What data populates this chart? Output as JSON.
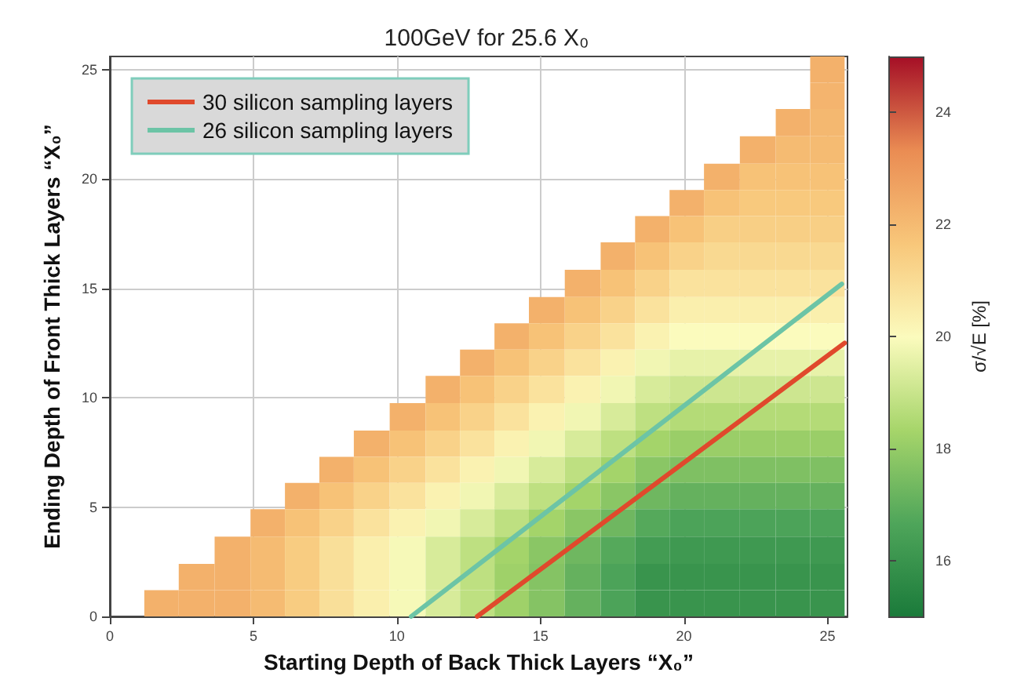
{
  "chart_data": {
    "type": "heatmap",
    "title": "100GeV for 25.6 X₀",
    "xlabel": "Starting Depth of Back Thick Layers “X₀”",
    "ylabel": "Ending Depth of Front Thick Layers “X₀”",
    "clabel": "σ/√E [%]",
    "x": [
      0.6,
      1.8,
      3.0,
      4.3,
      5.5,
      6.7,
      7.9,
      9.1,
      10.4,
      11.6,
      12.8,
      14.0,
      15.2,
      16.5,
      17.7,
      18.9,
      20.1,
      21.3,
      22.6,
      23.8,
      25.0
    ],
    "cells": [
      [
        null,
        null,
        null,
        null,
        null,
        null,
        null,
        null,
        null,
        null,
        null,
        null,
        null,
        null,
        null,
        null,
        null,
        null,
        null,
        null,
        22.3
      ],
      [
        null,
        null,
        null,
        null,
        null,
        null,
        null,
        null,
        null,
        null,
        null,
        null,
        null,
        null,
        null,
        null,
        null,
        null,
        null,
        null,
        22.2
      ],
      [
        null,
        null,
        null,
        null,
        null,
        null,
        null,
        null,
        null,
        null,
        null,
        null,
        null,
        null,
        null,
        null,
        null,
        null,
        null,
        22.3,
        22.1
      ],
      [
        null,
        null,
        null,
        null,
        null,
        null,
        null,
        null,
        null,
        null,
        null,
        null,
        null,
        null,
        null,
        null,
        null,
        null,
        22.3,
        22.0,
        22.0
      ],
      [
        null,
        null,
        null,
        null,
        null,
        null,
        null,
        null,
        null,
        null,
        null,
        null,
        null,
        null,
        null,
        null,
        null,
        22.3,
        21.8,
        21.8,
        21.8
      ],
      [
        null,
        null,
        null,
        null,
        null,
        null,
        null,
        null,
        null,
        null,
        null,
        null,
        null,
        null,
        null,
        null,
        22.3,
        21.8,
        21.6,
        21.6,
        21.6
      ],
      [
        null,
        null,
        null,
        null,
        null,
        null,
        null,
        null,
        null,
        null,
        null,
        null,
        null,
        null,
        null,
        22.3,
        21.8,
        21.4,
        21.4,
        21.4,
        21.4
      ],
      [
        null,
        null,
        null,
        null,
        null,
        null,
        null,
        null,
        null,
        null,
        null,
        null,
        null,
        null,
        22.3,
        21.8,
        21.3,
        21.1,
        21.1,
        21.1,
        21.1
      ],
      [
        null,
        null,
        null,
        null,
        null,
        null,
        null,
        null,
        null,
        null,
        null,
        null,
        null,
        22.3,
        21.8,
        21.3,
        20.8,
        20.8,
        20.8,
        20.8,
        20.8
      ],
      [
        null,
        null,
        null,
        null,
        null,
        null,
        null,
        null,
        null,
        null,
        null,
        null,
        22.3,
        21.8,
        21.3,
        20.8,
        20.4,
        20.4,
        20.4,
        20.4,
        20.4
      ],
      [
        null,
        null,
        null,
        null,
        null,
        null,
        null,
        null,
        null,
        null,
        null,
        22.3,
        21.8,
        21.3,
        20.8,
        20.3,
        20.0,
        20.0,
        20.0,
        20.0,
        20.0
      ],
      [
        null,
        null,
        null,
        null,
        null,
        null,
        null,
        null,
        null,
        null,
        22.3,
        21.8,
        21.3,
        20.8,
        20.3,
        19.8,
        19.6,
        19.6,
        19.6,
        19.6,
        19.6
      ],
      [
        null,
        null,
        null,
        null,
        null,
        null,
        null,
        null,
        null,
        22.3,
        21.8,
        21.3,
        20.8,
        20.3,
        19.8,
        19.3,
        19.1,
        19.1,
        19.1,
        19.1,
        19.1
      ],
      [
        null,
        null,
        null,
        null,
        null,
        null,
        null,
        null,
        22.3,
        21.8,
        21.3,
        20.8,
        20.3,
        19.8,
        19.3,
        18.8,
        18.6,
        18.6,
        18.6,
        18.6,
        18.6
      ],
      [
        null,
        null,
        null,
        null,
        null,
        null,
        null,
        22.3,
        21.8,
        21.3,
        20.8,
        20.3,
        19.8,
        19.3,
        18.8,
        18.3,
        18.1,
        18.1,
        18.1,
        18.1,
        18.1
      ],
      [
        null,
        null,
        null,
        null,
        null,
        null,
        22.3,
        21.8,
        21.3,
        20.8,
        20.3,
        19.8,
        19.3,
        18.8,
        18.3,
        17.8,
        17.6,
        17.6,
        17.6,
        17.6,
        17.6
      ],
      [
        null,
        null,
        null,
        null,
        null,
        22.3,
        21.8,
        21.3,
        20.8,
        20.3,
        19.8,
        19.3,
        18.8,
        18.3,
        17.8,
        17.3,
        17.1,
        17.1,
        17.1,
        17.1,
        17.1
      ],
      [
        null,
        null,
        null,
        null,
        22.3,
        21.8,
        21.3,
        20.8,
        20.3,
        19.8,
        19.3,
        18.8,
        18.3,
        17.8,
        17.3,
        16.8,
        16.6,
        16.6,
        16.6,
        16.6,
        16.6
      ],
      [
        null,
        null,
        null,
        22.3,
        22.0,
        21.5,
        20.9,
        20.4,
        19.9,
        19.3,
        18.8,
        18.3,
        17.8,
        17.3,
        16.8,
        16.3,
        16.2,
        16.2,
        16.2,
        16.2,
        16.2
      ],
      [
        null,
        null,
        22.3,
        22.3,
        22.0,
        21.5,
        20.9,
        20.4,
        19.9,
        19.3,
        18.8,
        18.2,
        17.7,
        17.1,
        16.6,
        16.0,
        16.0,
        16.0,
        16.0,
        16.0,
        16.0
      ],
      [
        null,
        22.3,
        22.3,
        22.3,
        22.0,
        21.5,
        20.9,
        20.4,
        19.9,
        19.3,
        18.8,
        18.2,
        17.7,
        17.1,
        16.6,
        16.0,
        16.0,
        16.0,
        16.0,
        16.0,
        16.0
      ]
    ],
    "clim": [
      15,
      25
    ],
    "cticks": [
      16,
      18,
      20,
      22,
      24
    ],
    "xlim": [
      0,
      25.7
    ],
    "xticks": [
      0,
      5,
      10,
      15,
      20,
      25
    ],
    "ylim": [
      0,
      25.6
    ],
    "yticks": [
      0,
      5,
      10,
      15,
      20,
      25
    ],
    "grid": true,
    "legend": "top left",
    "series": [
      {
        "type": "line",
        "name": "30 silicon sampling layers",
        "color": "#e0492c",
        "x": [
          12.8,
          25.6
        ],
        "values": [
          0,
          12.5
        ]
      },
      {
        "type": "line",
        "name": "26 silicon sampling layers",
        "color": "#6cc4a6",
        "x": [
          10.5,
          25.5
        ],
        "values": [
          0,
          15.2
        ]
      }
    ]
  }
}
